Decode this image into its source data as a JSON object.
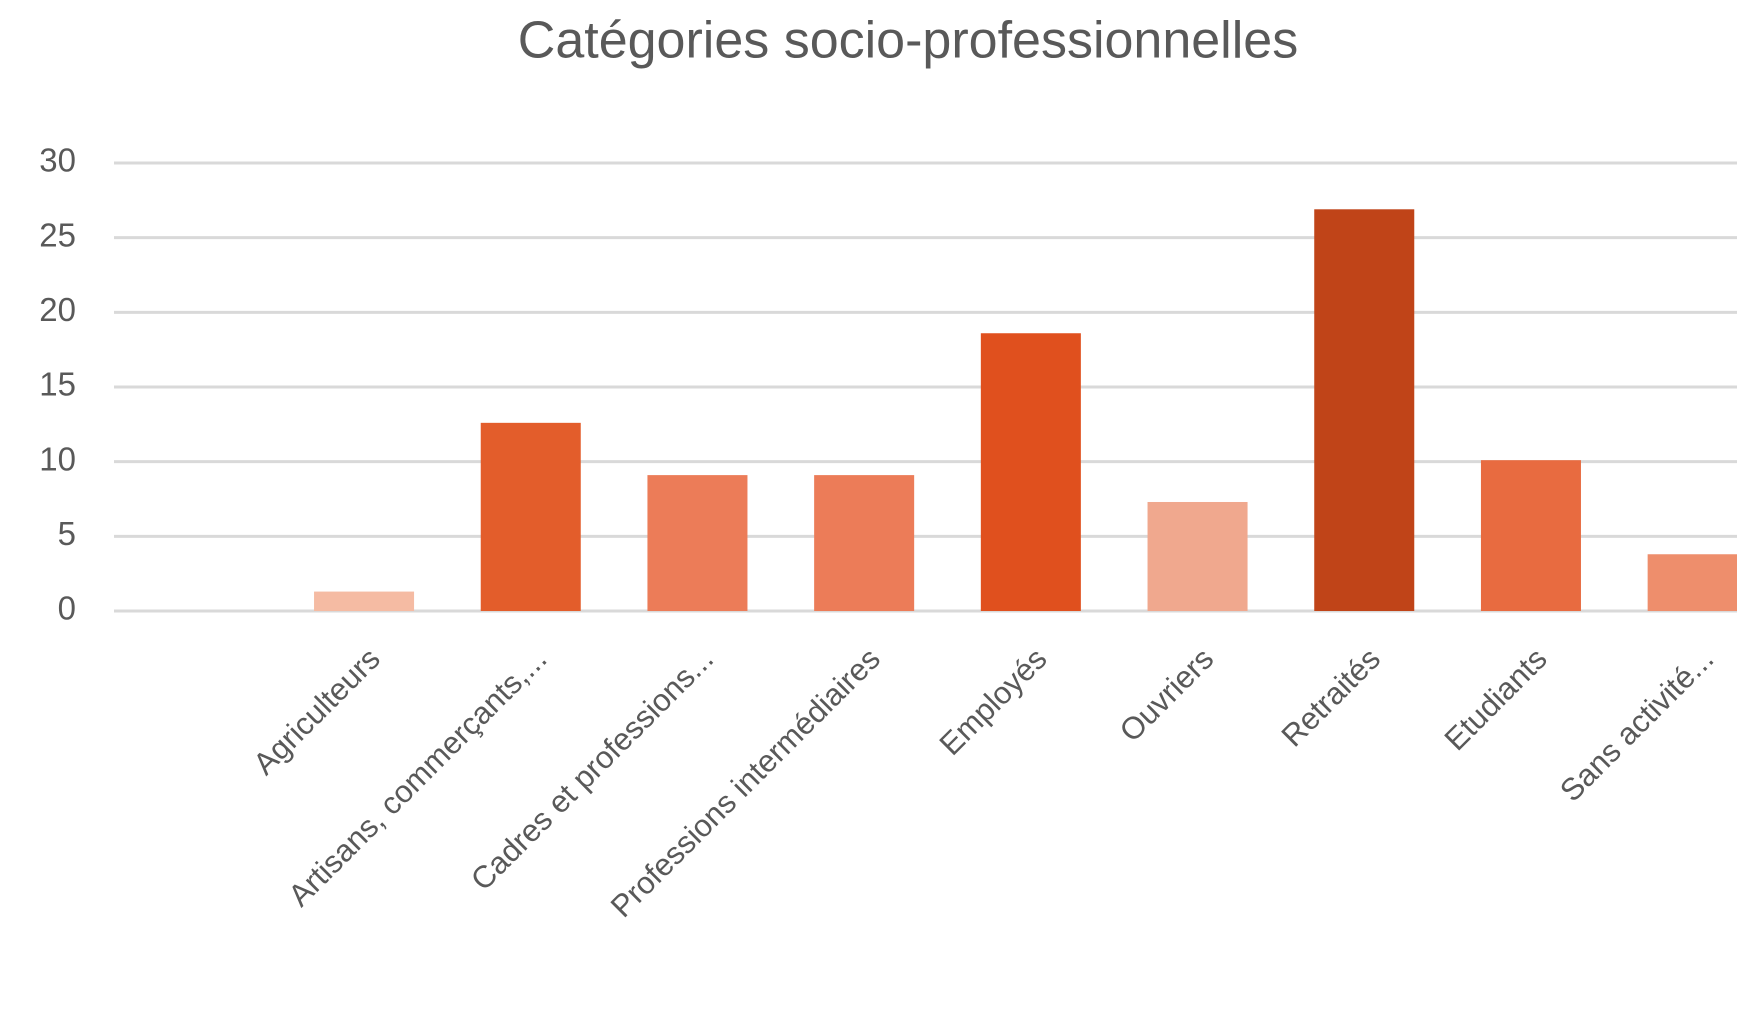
{
  "chart_data": {
    "type": "bar",
    "title": "Catégories socio-professionnelles",
    "categories": [
      null,
      "Agriculteurs",
      "Artisans, commerçants,...",
      "Cadres et professions...",
      "Professions intermédiaires",
      "Employés",
      "Ouvriers",
      "Retraités",
      "Etudiants",
      "Sans activité..."
    ],
    "values": [
      null,
      1.3,
      12.6,
      9.1,
      9.1,
      18.6,
      7.3,
      26.9,
      10.1,
      3.8
    ],
    "colors": [
      null,
      "#f5bba3",
      "#e35d2b",
      "#ec7c58",
      "#ec7c58",
      "#e0501e",
      "#f0a88e",
      "#c04418",
      "#e86b40",
      "#ee8e6c"
    ],
    "ylim": [
      0,
      30
    ],
    "yticks": [
      0,
      5,
      10,
      15,
      20,
      25,
      30
    ],
    "grid": true
  }
}
